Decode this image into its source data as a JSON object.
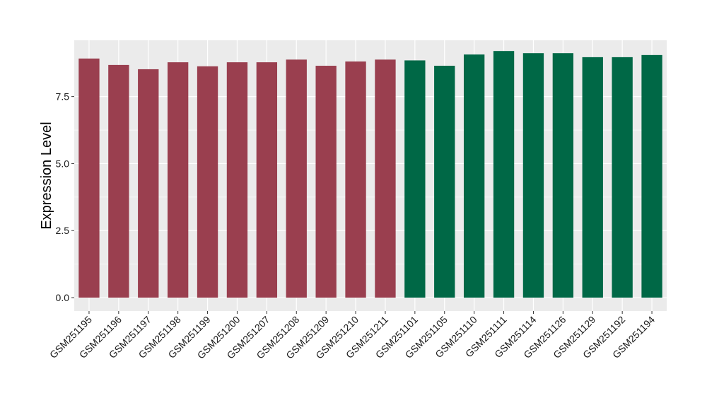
{
  "chart_data": {
    "type": "bar",
    "title": "",
    "xlabel": "",
    "ylabel": "Expression Level",
    "ylim": [
      -0.5,
      9.6
    ],
    "yticks": [
      0.0,
      2.5,
      5.0,
      7.5
    ],
    "ytick_labels": [
      "0.0",
      "2.5",
      "5.0",
      "7.5"
    ],
    "grid": true,
    "legend": "none",
    "panel_background": "#EBEBEB",
    "grid_color": "#FFFFFF",
    "categories": [
      "GSM251195",
      "GSM251196",
      "GSM251197",
      "GSM251198",
      "GSM251199",
      "GSM251200",
      "GSM251207",
      "GSM251208",
      "GSM251209",
      "GSM251210",
      "GSM251211",
      "GSM251101",
      "GSM251105",
      "GSM251110",
      "GSM251111",
      "GSM251114",
      "GSM251126",
      "GSM251129",
      "GSM251192",
      "GSM251194"
    ],
    "values": [
      8.92,
      8.68,
      8.52,
      8.78,
      8.63,
      8.78,
      8.78,
      8.88,
      8.65,
      8.81,
      8.88,
      8.85,
      8.65,
      9.07,
      9.2,
      9.12,
      9.12,
      8.97,
      8.97,
      9.05
    ],
    "groups": [
      {
        "color": "#9A3F4F",
        "count": 11
      },
      {
        "color": "#006846",
        "count": 9
      }
    ]
  }
}
